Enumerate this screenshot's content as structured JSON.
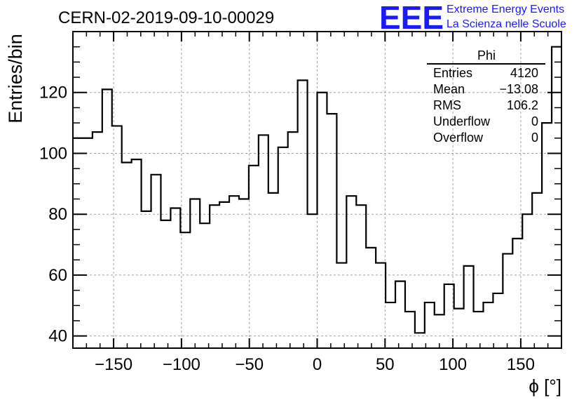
{
  "chart_data": {
    "type": "bar",
    "title": "CERN-02-2019-09-10-00029",
    "xlabel": "ϕ [°]",
    "ylabel": "Entries/bin",
    "xlim": [
      -180,
      180
    ],
    "ylim": [
      36,
      140
    ],
    "bin_width": 7.2,
    "x_ticks": [
      "−150",
      "−100",
      "−50",
      "0",
      "50",
      "100",
      "150"
    ],
    "x_tick_values": [
      -150,
      -100,
      -50,
      0,
      50,
      100,
      150
    ],
    "y_ticks": [
      "40",
      "60",
      "80",
      "100",
      "120"
    ],
    "y_tick_values": [
      40,
      60,
      80,
      100,
      120
    ],
    "grid": true,
    "bin_edges": [
      -180.0,
      -172.8,
      -165.6,
      -158.4,
      -151.2,
      -144.0,
      -136.8,
      -129.6,
      -122.4,
      -115.2,
      -108.0,
      -100.8,
      -93.6,
      -86.4,
      -79.2,
      -72.0,
      -64.8,
      -57.6,
      -50.4,
      -43.2,
      -36.0,
      -28.8,
      -21.6,
      -14.4,
      -7.2,
      0.0,
      7.2,
      14.4,
      21.6,
      28.8,
      36.0,
      43.2,
      50.4,
      57.6,
      64.8,
      72.0,
      79.2,
      86.4,
      93.6,
      100.8,
      108.0,
      115.2,
      122.4,
      129.6,
      136.8,
      144.0,
      151.2,
      158.4,
      165.6,
      172.8,
      180.0
    ],
    "values": [
      105,
      105,
      107,
      121,
      109,
      97,
      98,
      81,
      93,
      78,
      82,
      74,
      85,
      77,
      83,
      84,
      86,
      85,
      96,
      106,
      87,
      102,
      107,
      124,
      80,
      120,
      113,
      64,
      86,
      83,
      69,
      64,
      51,
      58,
      48,
      41,
      51,
      47,
      57,
      49,
      63,
      48,
      51,
      54,
      67,
      72,
      80,
      87,
      110,
      135
    ]
  },
  "stats_box": {
    "title": "Phi",
    "rows": [
      {
        "label": "Entries",
        "value": "4120"
      },
      {
        "label": "Mean",
        "value": "−13.08"
      },
      {
        "label": "RMS",
        "value": "106.2"
      },
      {
        "label": "Underflow",
        "value": "0"
      },
      {
        "label": "Overflow",
        "value": "0"
      }
    ]
  },
  "logo": {
    "mark": "EEE",
    "line1": "Extreme Energy Events",
    "line2": "La Scienza nelle Scuole",
    "color": "#1a1aff"
  },
  "colors": {
    "histogram": "#000000",
    "grid": "#a0a0a0"
  }
}
